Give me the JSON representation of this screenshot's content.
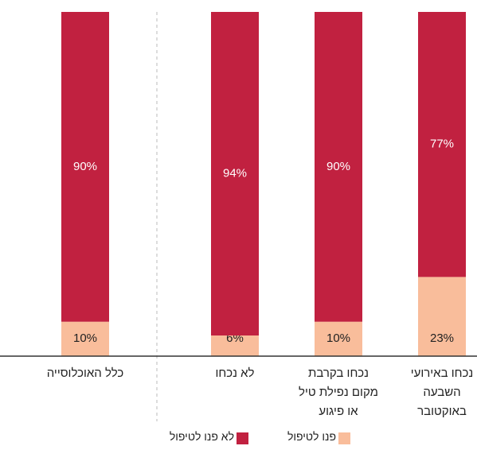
{
  "chart_data": {
    "type": "bar",
    "stacked": true,
    "categories": [
      "נכחו באירועי השבעה באוקטובר",
      "נכחו בקרבת מקום נפילת טיל או פיגוע",
      "לא נכחו",
      "כלל האוכלוסייה"
    ],
    "series": [
      {
        "name": "פנו לטיפול",
        "color": "#f9bd9b",
        "values": [
          23,
          10,
          6,
          10
        ],
        "value_labels": [
          "23%",
          "10%",
          "6%",
          "10%"
        ]
      },
      {
        "name": "לא פנו לטיפול",
        "color": "#c12140",
        "values": [
          77,
          90,
          94,
          90
        ],
        "value_labels": [
          "77%",
          "90%",
          "94%",
          "90%"
        ]
      }
    ],
    "ylim": [
      0,
      100
    ]
  }
}
